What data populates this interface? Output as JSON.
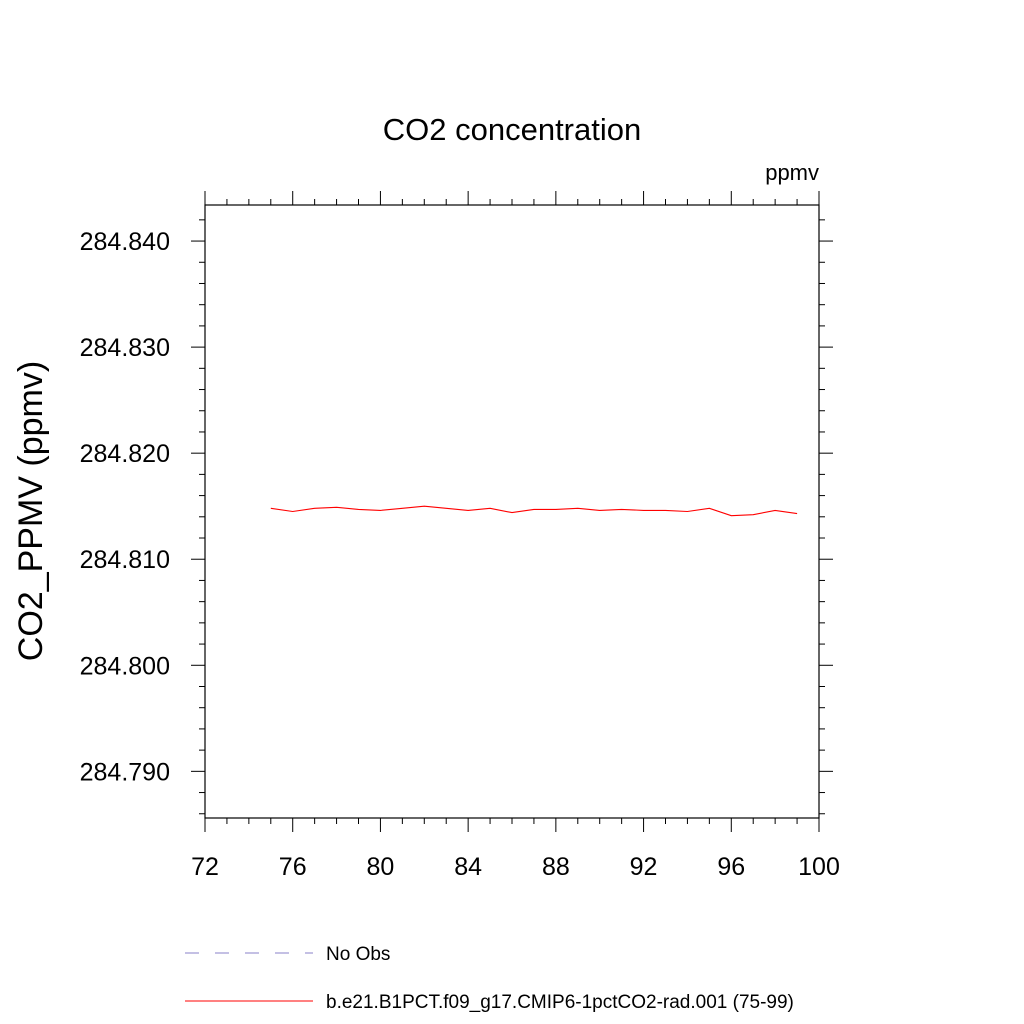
{
  "chart_data": {
    "type": "line",
    "title": "CO2 concentration",
    "units_label": "ppmv",
    "xlabel": "",
    "ylabel": "CO2_PPMV  (ppmv)",
    "xlim": [
      72,
      100
    ],
    "ylim": [
      284.7856,
      284.8434
    ],
    "x_ticks": [
      72,
      76,
      80,
      84,
      88,
      92,
      96,
      100
    ],
    "x_tick_labels": [
      "72",
      "76",
      "80",
      "84",
      "88",
      "92",
      "96",
      "100"
    ],
    "y_ticks": [
      284.79,
      284.8,
      284.81,
      284.82,
      284.83,
      284.84
    ],
    "y_tick_labels": [
      "284.790",
      "284.800",
      "284.810",
      "284.820",
      "284.830",
      "284.840"
    ],
    "grid": false,
    "legend_position": "bottom",
    "series": [
      {
        "name": "No Obs",
        "color": "#8a82c8",
        "dash": "dashed",
        "x": [],
        "y": []
      },
      {
        "name": "b.e21.B1PCT.f09_g17.CMIP6-1pctCO2-rad.001 (75-99)",
        "color": "#ff0000",
        "dash": "solid",
        "x": [
          75,
          76,
          77,
          78,
          79,
          80,
          81,
          82,
          83,
          84,
          85,
          86,
          87,
          88,
          89,
          90,
          91,
          92,
          93,
          94,
          95,
          96,
          97,
          98,
          99
        ],
        "y": [
          284.8148,
          284.8145,
          284.8148,
          284.8149,
          284.8147,
          284.8146,
          284.8148,
          284.815,
          284.8148,
          284.8146,
          284.8148,
          284.8144,
          284.8147,
          284.8147,
          284.8148,
          284.8146,
          284.8147,
          284.8146,
          284.8146,
          284.8145,
          284.8148,
          284.8141,
          284.8142,
          284.8146,
          284.8143
        ]
      }
    ]
  }
}
